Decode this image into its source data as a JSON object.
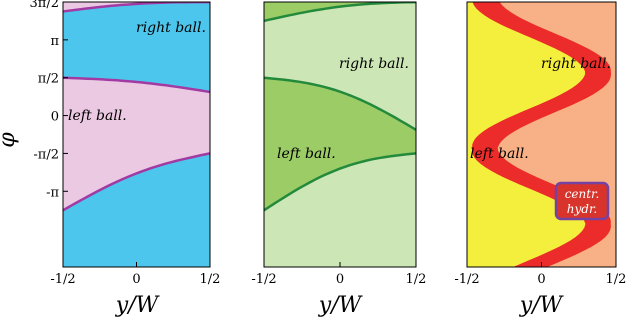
{
  "chart_data": [
    {
      "type": "area",
      "xlabel": "y/W",
      "ylabel": "φ",
      "xlim": [
        -0.5,
        0.5
      ],
      "ylim": [
        -6.2832,
        4.7124
      ],
      "xticks": [
        "-1/2",
        "0",
        "1/2"
      ],
      "yticks": [
        "3π/2",
        "π",
        "π/2",
        "0",
        "-π/2",
        "-π"
      ],
      "colors": {
        "light": "#ebc9e2",
        "dark": "#4dc6ee",
        "curve": "#a23aa3"
      },
      "boundaries": [
        {
          "x": [
            -0.5,
            0.5
          ],
          "y": [
            4.32,
            4.71
          ]
        },
        {
          "x": [
            -0.5,
            0.5
          ],
          "y": [
            1.57,
            0.98
          ]
        },
        {
          "x": [
            -0.5,
            0.5
          ],
          "y": [
            -3.93,
            -1.57
          ]
        }
      ],
      "labels": [
        {
          "text": "right ball.",
          "x": 0.17,
          "y": 3.8
        },
        {
          "text": "left ball.",
          "x": -0.33,
          "y": 0.6
        }
      ]
    },
    {
      "type": "area",
      "xlabel": "y/W",
      "xlim": [
        -0.5,
        0.5
      ],
      "ylim": [
        -6.2832,
        4.7124
      ],
      "xticks": [
        "-1/2",
        "0",
        "1/2"
      ],
      "colors": {
        "light": "#cde6b6",
        "dark": "#9bcc66",
        "curve": "#238a3c"
      },
      "boundaries": [
        {
          "x": [
            -0.5,
            0.5
          ],
          "y": [
            3.93,
            4.71
          ]
        },
        {
          "x": [
            -0.5,
            0.5
          ],
          "y": [
            1.57,
            -0.59
          ]
        },
        {
          "x": [
            -0.5,
            0.5
          ],
          "y": [
            -3.93,
            -1.57
          ]
        }
      ],
      "labels": [
        {
          "text": "right ball.",
          "x": 0.2,
          "y": 2.5
        },
        {
          "text": "left ball.",
          "x": -0.3,
          "y": -0.6
        }
      ]
    },
    {
      "type": "area",
      "xlabel": "y/W",
      "xlim": [
        -0.5,
        0.5
      ],
      "ylim": [
        -6.2832,
        4.7124
      ],
      "xticks": [
        "-1/2",
        "0",
        "1/2"
      ],
      "colors": {
        "yellow": "#f4ef3c",
        "orange": "#f8b086",
        "red": "#ec2b2b",
        "boxfill": "#d8342c",
        "boxborder": "#7342a3"
      },
      "band_center": {
        "x0": 0.0,
        "amp": 0.38,
        "phase_offset": 0.2
      },
      "labels": [
        {
          "text": "right ball.",
          "x": 0.32,
          "y": 2.5
        },
        {
          "text": "left ball.",
          "x": -0.3,
          "y": -0.6
        },
        {
          "text": "centr.",
          "x": 0.35,
          "y": -2.0
        },
        {
          "text": "hydr.",
          "x": 0.35,
          "y": -2.65
        }
      ]
    }
  ]
}
